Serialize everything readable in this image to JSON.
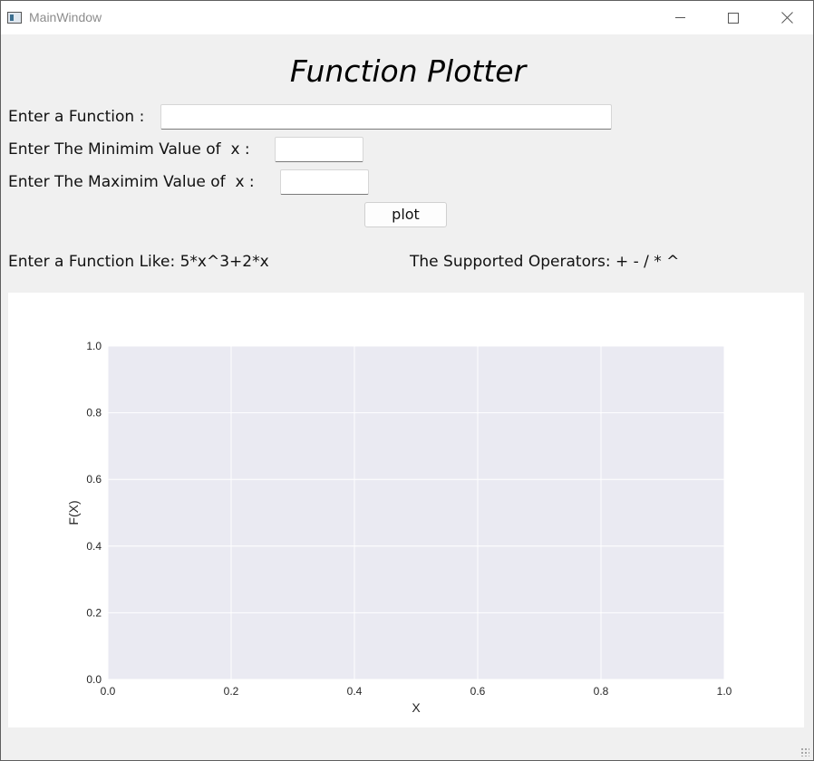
{
  "window": {
    "title": "MainWindow"
  },
  "header": {
    "title": "Function Plotter"
  },
  "form": {
    "function_label": "Enter a Function :",
    "function_value": "",
    "min_label": "Enter The Minimim Value of  x :",
    "min_value": "",
    "max_label": "Enter The Maximim Value of  x :",
    "max_value": "",
    "plot_button": "plot"
  },
  "hints": {
    "example": "Enter a Function Like: 5*x^3+2*x",
    "operators": "The Supported Operators: + - / * ^"
  },
  "chart_data": {
    "type": "line",
    "series": [],
    "xlabel": "X",
    "ylabel": "F(X)",
    "xlim": [
      0.0,
      1.0
    ],
    "ylim": [
      0.0,
      1.0
    ],
    "xticks": [
      "0.0",
      "0.2",
      "0.4",
      "0.6",
      "0.8",
      "1.0"
    ],
    "yticks": [
      "0.0",
      "0.2",
      "0.4",
      "0.6",
      "0.8",
      "1.0"
    ],
    "grid": true,
    "style": {
      "axes_facecolor": "#eaeaf2",
      "grid_color": "#ffffff"
    }
  }
}
